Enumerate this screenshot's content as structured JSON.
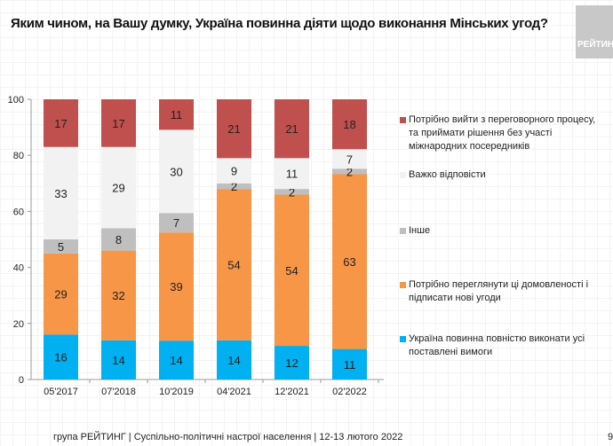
{
  "title": "Яким чином, на Вашу думку, Україна повинна діяти щодо виконання Мінських угод?",
  "logo_text": "РЕЙТИНГ",
  "footer": "група РЕЙТИНГ | Суспільно-політичні настрої населення | 12-13 лютого 2022",
  "page_number": "9",
  "chart_data": {
    "type": "bar",
    "stacked": true,
    "categories": [
      "05'2017",
      "07'2018",
      "10'2019",
      "04'2021",
      "12'2021",
      "02'2022"
    ],
    "ylim": [
      0,
      100
    ],
    "yticks": [
      0,
      20,
      40,
      60,
      80,
      100
    ],
    "grid": false,
    "legend_placement": "right",
    "series": [
      {
        "name": "Україна повинна повністю виконати усі поставлені вимоги",
        "color": "#00b0f0",
        "values": [
          16,
          14,
          14,
          14,
          12,
          11
        ]
      },
      {
        "name": "Потрібно переглянути ці домовленості і підписати нові угоди",
        "color": "#f79646",
        "values": [
          29,
          32,
          39,
          54,
          54,
          63
        ]
      },
      {
        "name": "Інше",
        "color": "#bfbfbf",
        "values": [
          5,
          8,
          7,
          2,
          2,
          2
        ]
      },
      {
        "name": "Важко відповісти",
        "color": "#f2f2f2",
        "values": [
          33,
          29,
          30,
          9,
          11,
          7
        ]
      },
      {
        "name": "Потрібно вийти з переговорного процесу, та приймати рішення без участі міжнародних посередників",
        "color": "#c0504d",
        "values": [
          17,
          17,
          11,
          21,
          21,
          18
        ]
      }
    ]
  }
}
